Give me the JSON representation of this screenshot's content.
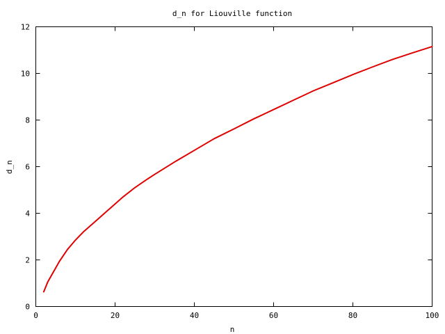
{
  "chart_data": {
    "type": "line",
    "title": "d_n for Liouville function",
    "xlabel": "n",
    "ylabel": "d_n",
    "xlim": [
      0,
      100
    ],
    "ylim": [
      0,
      12
    ],
    "xticks": [
      "0",
      "20",
      "40",
      "60",
      "80",
      "100"
    ],
    "yticks": [
      "0",
      "2",
      "4",
      "6",
      "8",
      "10",
      "12"
    ],
    "grid": false,
    "legend": "none",
    "series": [
      {
        "color": "#e00000",
        "x": [
          2,
          3,
          4,
          5,
          6,
          7,
          8,
          9,
          10,
          12,
          14,
          16,
          18,
          20,
          22,
          25,
          28,
          30,
          35,
          40,
          45,
          50,
          55,
          60,
          65,
          70,
          75,
          80,
          85,
          90,
          95,
          100
        ],
        "y": [
          0.63,
          1.05,
          1.35,
          1.65,
          1.95,
          2.2,
          2.45,
          2.65,
          2.85,
          3.2,
          3.5,
          3.8,
          4.1,
          4.4,
          4.7,
          5.1,
          5.45,
          5.67,
          6.2,
          6.7,
          7.2,
          7.62,
          8.05,
          8.45,
          8.85,
          9.25,
          9.6,
          9.95,
          10.28,
          10.6,
          10.88,
          11.15
        ]
      }
    ]
  }
}
